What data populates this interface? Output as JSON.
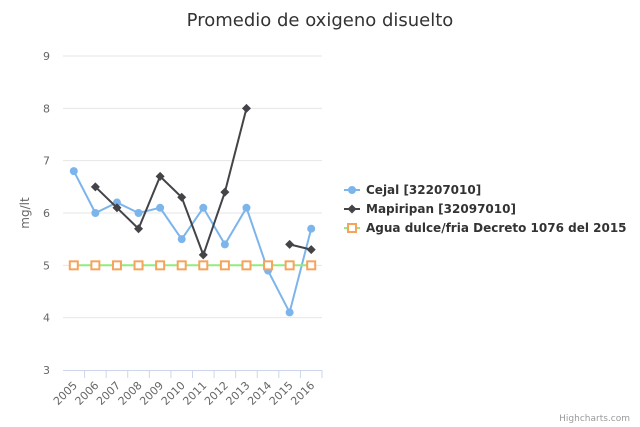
{
  "chart_data": {
    "type": "line",
    "title": "Promedio de oxigeno disuelto",
    "ylabel": "mg/lt",
    "xlabel": "",
    "categories": [
      "2005",
      "2006",
      "2007",
      "2008",
      "2009",
      "2010",
      "2011",
      "2012",
      "2013",
      "2014",
      "2015",
      "2016"
    ],
    "ylim": [
      3,
      9
    ],
    "yticks": [
      "3",
      "4",
      "5",
      "6",
      "7",
      "8",
      "9"
    ],
    "grid": true,
    "legend_position": "right",
    "series": [
      {
        "name": "Cejal [32207010]",
        "color": "#7cb5ec",
        "marker": "circle",
        "values": [
          6.8,
          6.0,
          6.2,
          6.0,
          6.1,
          5.5,
          6.1,
          5.4,
          6.1,
          4.9,
          4.1,
          5.7
        ]
      },
      {
        "name": "Mapiripan [32097010]",
        "color": "#434348",
        "marker": "diamond",
        "values": [
          null,
          6.5,
          6.1,
          5.7,
          6.7,
          6.3,
          5.2,
          6.4,
          8.0,
          null,
          5.4,
          5.3
        ]
      },
      {
        "name": "Agua dulce/fria Decreto 1076 del 2015",
        "color": "#90ed7d",
        "marker_color": "#f7a35c",
        "marker": "square-open",
        "values": [
          5,
          5,
          5,
          5,
          5,
          5,
          5,
          5,
          5,
          5,
          5,
          5
        ]
      }
    ]
  },
  "credits": "Highcharts.com"
}
